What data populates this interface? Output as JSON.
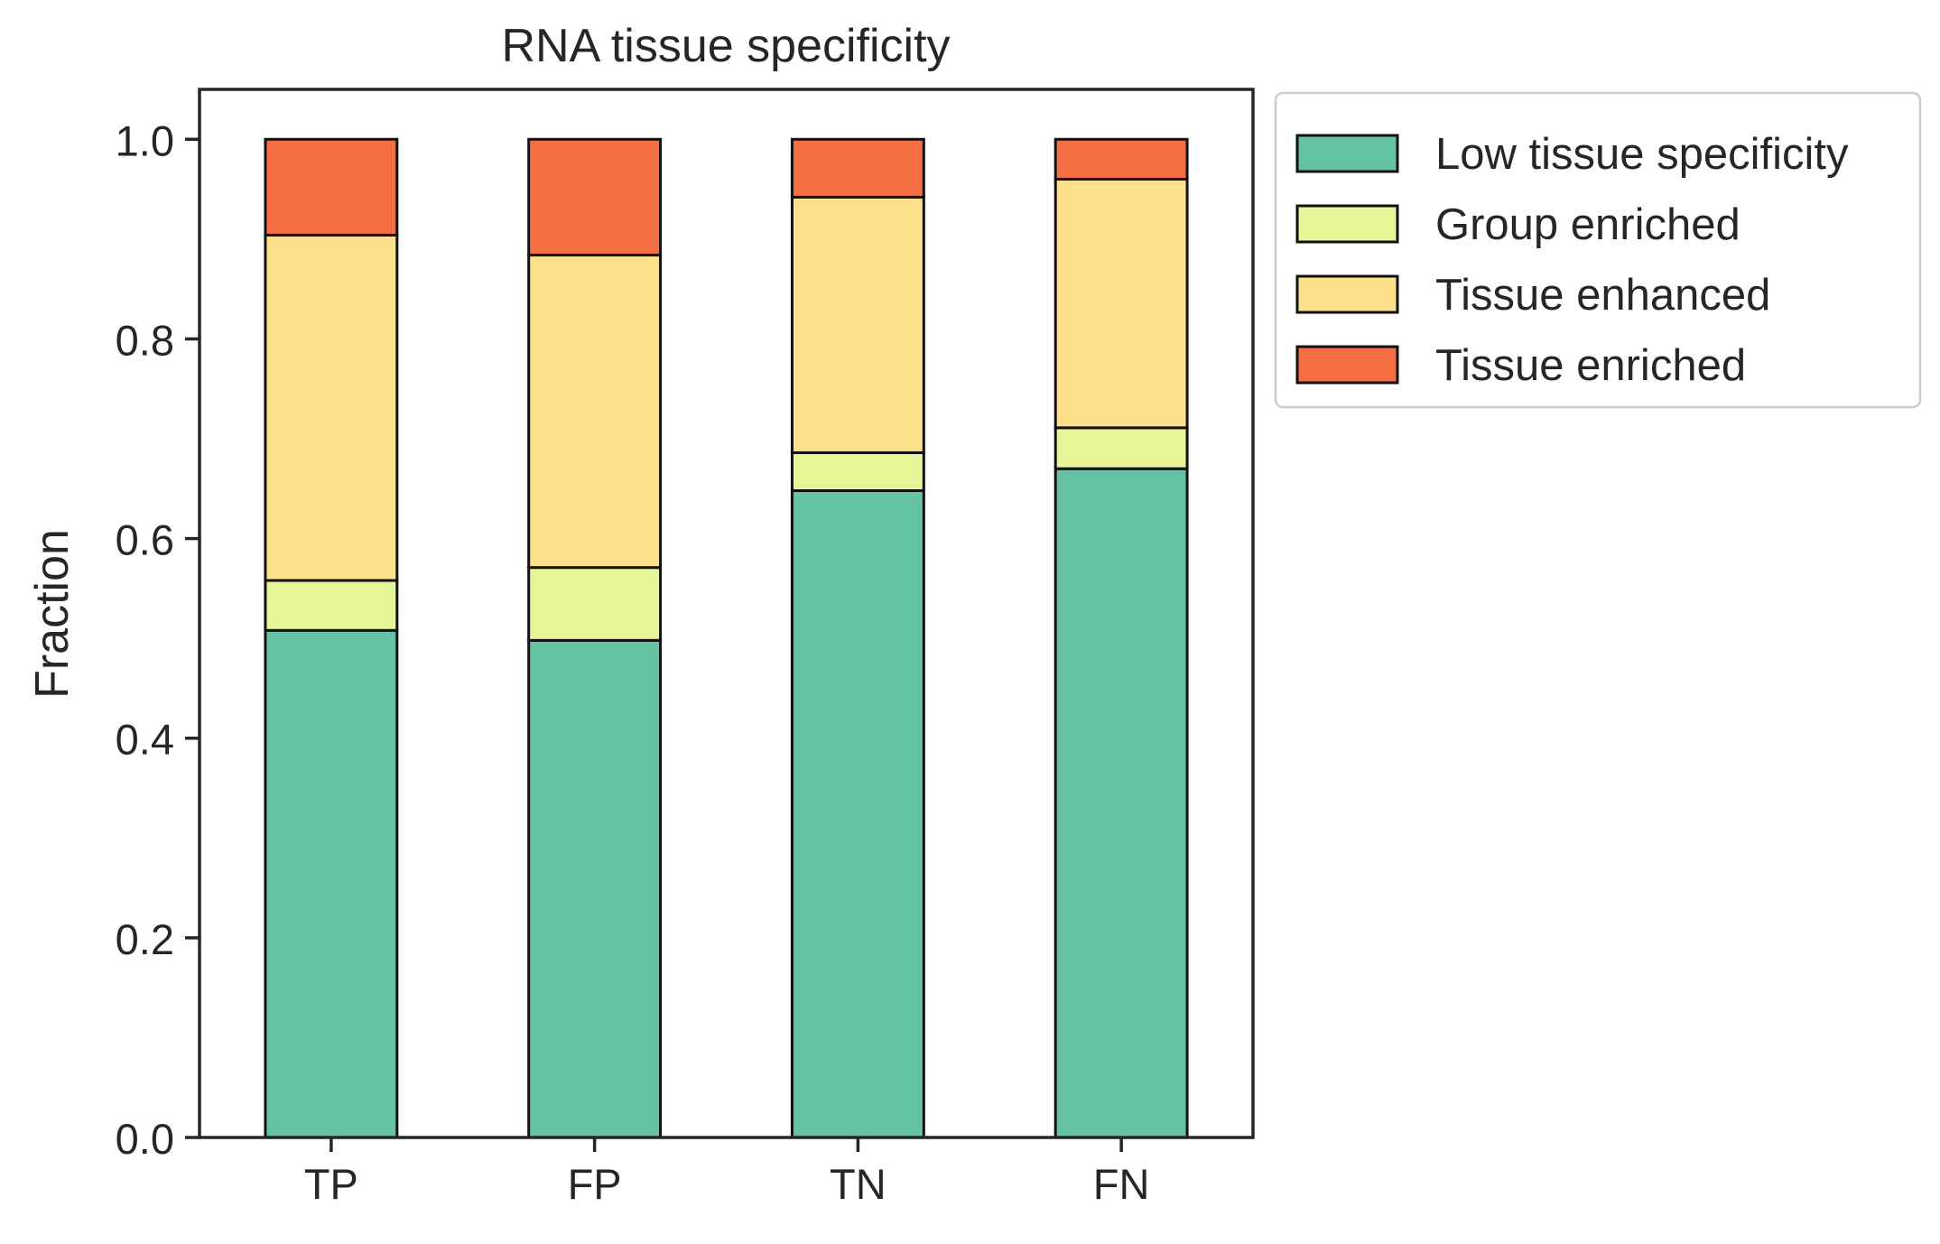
{
  "chart_data": {
    "type": "bar",
    "stacked": true,
    "title": "RNA tissue specificity",
    "xlabel": "",
    "ylabel": "Fraction",
    "categories": [
      "TP",
      "FP",
      "TN",
      "FN"
    ],
    "ylim": [
      0,
      1.05
    ],
    "yticks": [
      0.0,
      0.2,
      0.4,
      0.6,
      0.8,
      1.0
    ],
    "ytick_labels": [
      "0.0",
      "0.2",
      "0.4",
      "0.6",
      "0.8",
      "1.0"
    ],
    "grid": false,
    "legend_position": "outside-top-right",
    "series": [
      {
        "name": "Low tissue specificity",
        "color": "#66c2a5",
        "values": [
          0.508,
          0.498,
          0.648,
          0.67
        ]
      },
      {
        "name": "Group enriched",
        "color": "#e6f598",
        "values": [
          0.05,
          0.073,
          0.038,
          0.041
        ]
      },
      {
        "name": "Tissue enhanced",
        "color": "#fee08b",
        "values": [
          0.346,
          0.313,
          0.256,
          0.249
        ]
      },
      {
        "name": "Tissue enriched",
        "color": "#f46d43",
        "values": [
          0.096,
          0.116,
          0.058,
          0.04
        ]
      }
    ]
  }
}
